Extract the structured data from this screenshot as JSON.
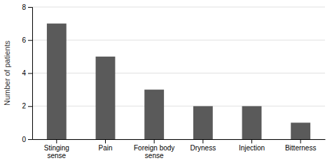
{
  "chart_data": {
    "type": "bar",
    "categories": [
      "Stinging\nsense",
      "Pain",
      "Foreign body\nsense",
      "Dryness",
      "Injection",
      "Bitterness"
    ],
    "values": [
      7,
      5,
      3,
      2,
      2,
      1
    ],
    "color": "#5a5a5a",
    "ylabel": "Number of patients",
    "ylim": [
      0,
      8
    ],
    "yticks": [
      0,
      2,
      4,
      6,
      8
    ],
    "grid": true
  }
}
